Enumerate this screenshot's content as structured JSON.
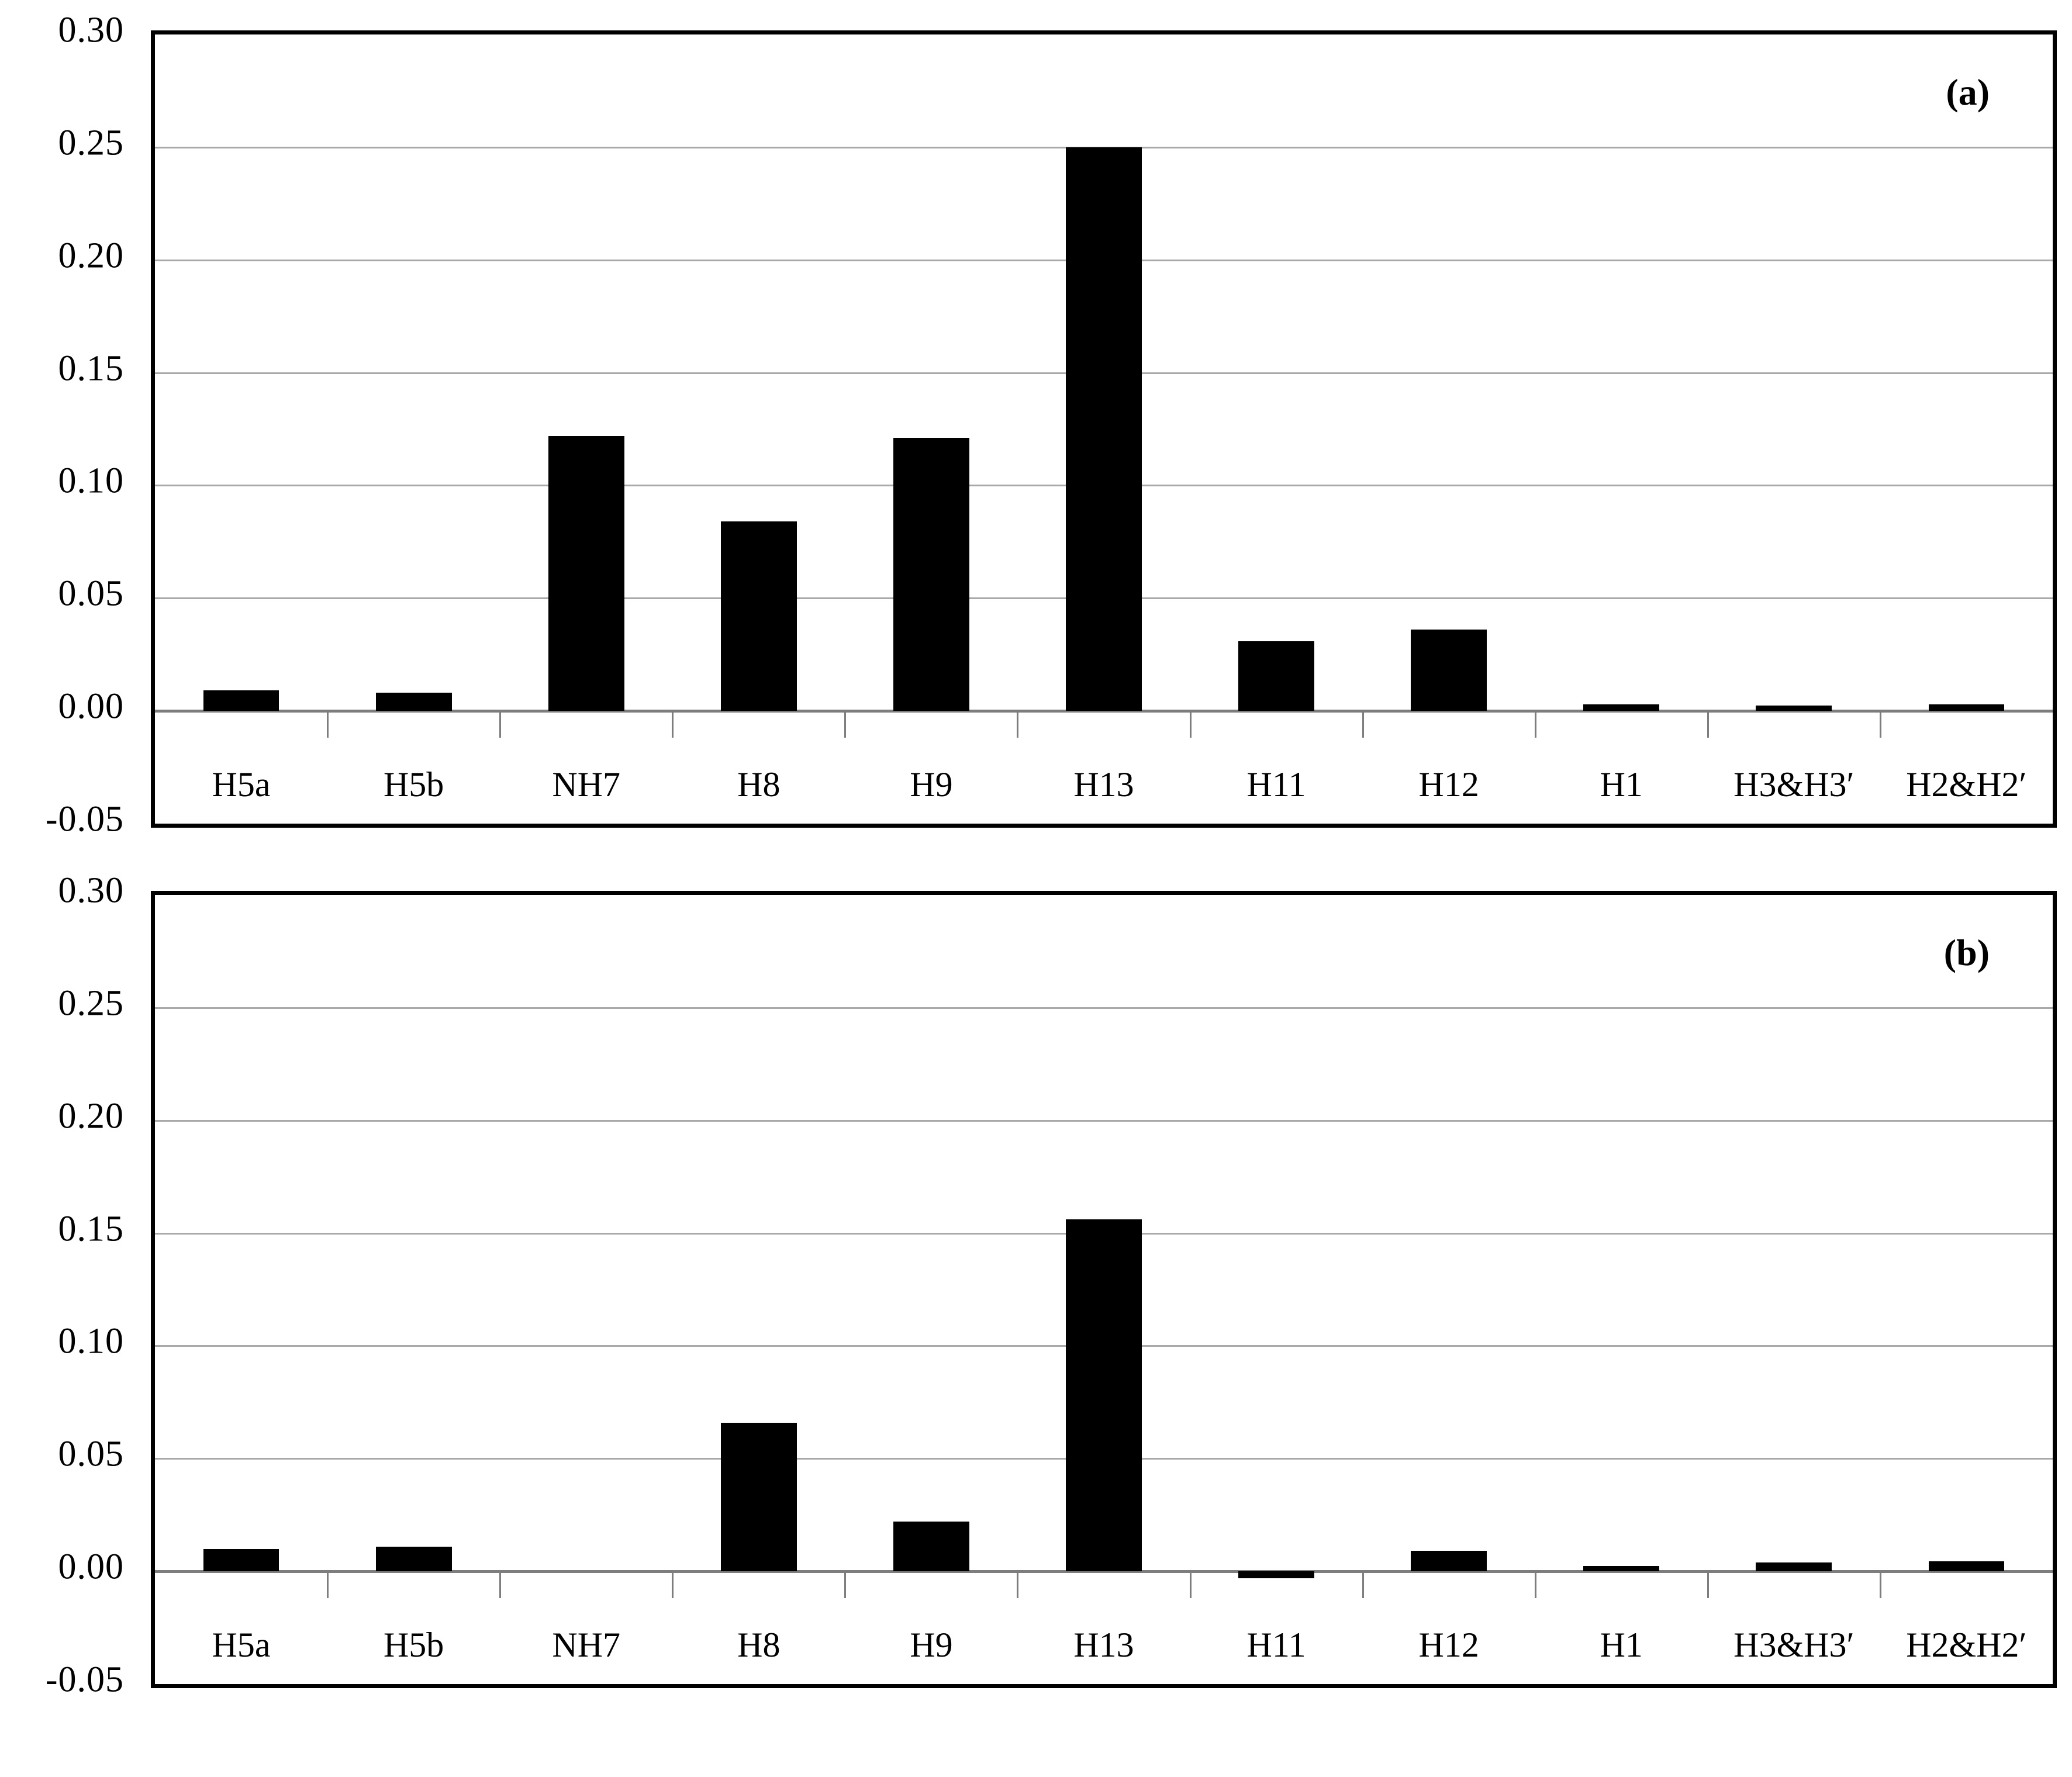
{
  "figure": {
    "background": "#ffffff",
    "bar_color": "#000000",
    "gridline_color": "#a9a9a9",
    "zero_line_color": "#7d7d7d",
    "border_color": "#000000"
  },
  "chart_data": [
    {
      "type": "bar",
      "panel_label": "(a)",
      "categories": [
        "H5a",
        "H5b",
        "NH7",
        "H8",
        "H9",
        "H13",
        "H11",
        "H12",
        "H1",
        "H3&H3′",
        "H2&H2′"
      ],
      "values": [
        0.009,
        0.008,
        0.122,
        0.084,
        0.121,
        0.25,
        0.031,
        0.036,
        0.003,
        0.0025,
        0.003
      ],
      "title": "",
      "xlabel": "",
      "ylabel": "",
      "ylim": [
        -0.05,
        0.3
      ],
      "y_tick_interval": 0.05,
      "y_tick_labels": [
        "0.30",
        "0.25",
        "0.20",
        "0.15",
        "0.10",
        "0.05",
        "0.00",
        "-0.05"
      ],
      "grid": true,
      "legend": false,
      "bar_color": "#000000"
    },
    {
      "type": "bar",
      "panel_label": "(b)",
      "categories": [
        "H5a",
        "H5b",
        "NH7",
        "H8",
        "H9",
        "H13",
        "H11",
        "H12",
        "H1",
        "H3&H3′",
        "H2&H2′"
      ],
      "values": [
        0.01,
        0.011,
        0.0,
        0.066,
        0.022,
        0.156,
        -0.003,
        0.009,
        0.0025,
        0.004,
        0.0045
      ],
      "title": "",
      "xlabel": "",
      "ylabel": "",
      "ylim": [
        -0.05,
        0.3
      ],
      "y_tick_interval": 0.05,
      "y_tick_labels": [
        "0.30",
        "0.25",
        "0.20",
        "0.15",
        "0.10",
        "0.05",
        "0.00",
        "-0.05"
      ],
      "grid": true,
      "legend": false,
      "bar_color": "#000000"
    }
  ]
}
